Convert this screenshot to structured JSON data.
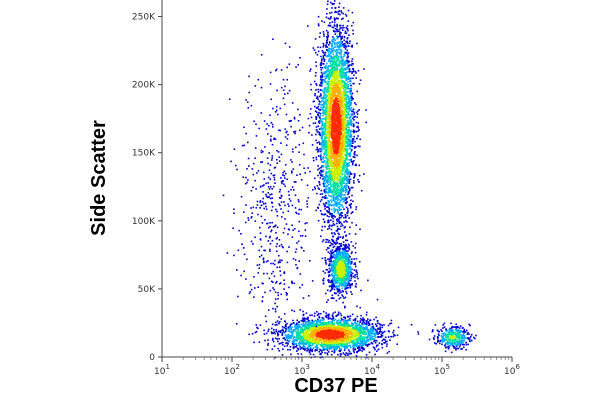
{
  "chart_data": {
    "type": "scatter",
    "subtype": "flow-cytometry-density-dot-plot",
    "xlabel": "CD37 PE",
    "ylabel": "Side Scatter",
    "x_scale": "log",
    "y_scale": "linear",
    "xlim": [
      10,
      1000000
    ],
    "ylim": [
      0,
      262144
    ],
    "x_ticks": [
      {
        "value": 10,
        "base": "10",
        "exp": "1"
      },
      {
        "value": 100,
        "base": "10",
        "exp": "2"
      },
      {
        "value": 1000,
        "base": "10",
        "exp": "3"
      },
      {
        "value": 10000,
        "base": "10",
        "exp": "4"
      },
      {
        "value": 100000,
        "base": "10",
        "exp": "5"
      },
      {
        "value": 1000000,
        "base": "10",
        "exp": "6"
      }
    ],
    "y_ticks": [
      {
        "value": 0,
        "label": "0"
      },
      {
        "value": 50000,
        "label": "50K"
      },
      {
        "value": 100000,
        "label": "100K"
      },
      {
        "value": 150000,
        "label": "150K"
      },
      {
        "value": 200000,
        "label": "200K"
      },
      {
        "value": 250000,
        "label": "250K"
      }
    ],
    "density_colormap": [
      "#0000cc",
      "#00aaff",
      "#00e0a0",
      "#c8f000",
      "#ffb000",
      "#ff2a00"
    ],
    "populations": [
      {
        "x_center": 3000,
        "y_center": 170000,
        "x_spread_log": 0.12,
        "y_spread": 35000,
        "count": 4200,
        "peak_density": 1.0
      },
      {
        "x_center": 3500,
        "y_center": 65000,
        "x_spread_log": 0.09,
        "y_spread": 9000,
        "count": 900,
        "peak_density": 0.65
      },
      {
        "x_center": 2500,
        "y_center": 17000,
        "x_spread_log": 0.35,
        "y_spread": 6000,
        "count": 2600,
        "peak_density": 1.0
      },
      {
        "x_center": 140000,
        "y_center": 15000,
        "x_spread_log": 0.12,
        "y_spread": 4000,
        "count": 350,
        "peak_density": 0.55
      },
      {
        "x_center": 400,
        "y_center": 110000,
        "x_spread_log": 0.25,
        "y_spread": 50000,
        "count": 500,
        "peak_density": 0.15
      }
    ],
    "grid": false,
    "legend": "none"
  }
}
